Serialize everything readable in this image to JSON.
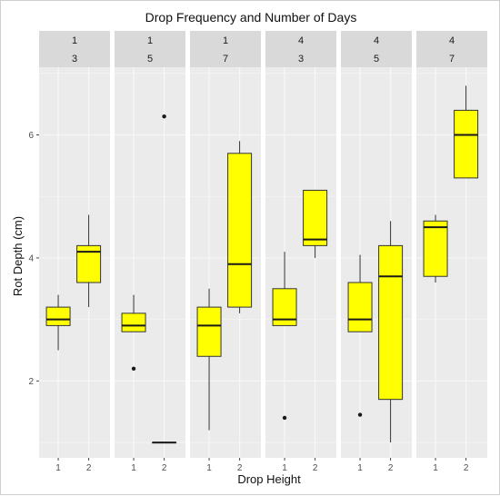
{
  "chart_data": {
    "type": "boxplot",
    "title": "Drop Frequency and Number of Days",
    "xlabel": "Drop Height",
    "ylabel": "Rot Depth (cm)",
    "ylim": [
      0.75,
      7.1
    ],
    "yticks": [
      2,
      4,
      6
    ],
    "categories": [
      "1",
      "2"
    ],
    "box_fill": "#ffff00",
    "panel_background": "#ebebeb",
    "strip_background": "#d9d9d9",
    "grid": true,
    "facets": [
      {
        "strip": [
          "1",
          "3"
        ],
        "boxes": [
          {
            "x": "1",
            "min": 2.5,
            "q1": 2.9,
            "median": 3.0,
            "q3": 3.2,
            "max": 3.4,
            "outliers": []
          },
          {
            "x": "2",
            "min": 3.2,
            "q1": 3.6,
            "median": 4.1,
            "q3": 4.2,
            "max": 4.7,
            "outliers": []
          }
        ]
      },
      {
        "strip": [
          "1",
          "5"
        ],
        "boxes": [
          {
            "x": "1",
            "min": 2.8,
            "q1": 2.8,
            "median": 2.9,
            "q3": 3.1,
            "max": 3.4,
            "outliers": [
              2.2
            ]
          },
          {
            "x": "2",
            "min": 1.0,
            "q1": 1.0,
            "median": 1.0,
            "q3": 1.0,
            "max": 1.0,
            "outliers": [
              6.3
            ]
          }
        ]
      },
      {
        "strip": [
          "1",
          "7"
        ],
        "boxes": [
          {
            "x": "1",
            "min": 1.2,
            "q1": 2.4,
            "median": 2.9,
            "q3": 3.2,
            "max": 3.5,
            "outliers": []
          },
          {
            "x": "2",
            "min": 3.1,
            "q1": 3.2,
            "median": 3.9,
            "q3": 5.7,
            "max": 5.9,
            "outliers": []
          }
        ]
      },
      {
        "strip": [
          "4",
          "3"
        ],
        "boxes": [
          {
            "x": "1",
            "min": 2.9,
            "q1": 2.9,
            "median": 3.0,
            "q3": 3.5,
            "max": 4.1,
            "outliers": [
              1.4
            ]
          },
          {
            "x": "2",
            "min": 4.0,
            "q1": 4.2,
            "median": 4.3,
            "q3": 5.1,
            "max": 5.1,
            "outliers": []
          }
        ]
      },
      {
        "strip": [
          "4",
          "5"
        ],
        "boxes": [
          {
            "x": "1",
            "min": 2.8,
            "q1": 2.8,
            "median": 3.0,
            "q3": 3.6,
            "max": 4.05,
            "outliers": [
              1.45
            ]
          },
          {
            "x": "2",
            "min": 1.0,
            "q1": 1.7,
            "median": 3.7,
            "q3": 4.2,
            "max": 4.6,
            "outliers": []
          }
        ]
      },
      {
        "strip": [
          "4",
          "7"
        ],
        "boxes": [
          {
            "x": "1",
            "min": 3.6,
            "q1": 3.7,
            "median": 4.5,
            "q3": 4.6,
            "max": 4.7,
            "outliers": []
          },
          {
            "x": "2",
            "min": 5.3,
            "q1": 5.3,
            "median": 6.0,
            "q3": 6.4,
            "max": 6.8,
            "outliers": []
          }
        ]
      }
    ]
  }
}
